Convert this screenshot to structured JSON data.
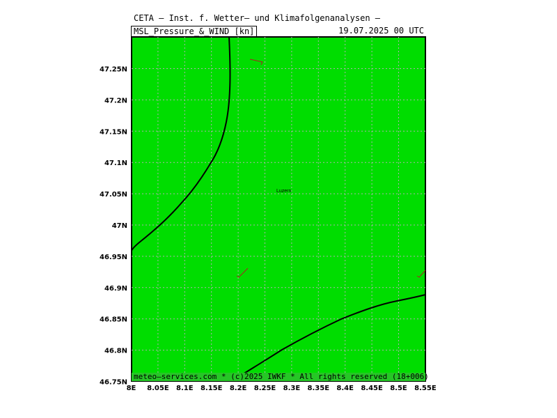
{
  "header": {
    "title": "CETA – Inst. f. Wetter– und Klimafolgenanalysen –",
    "product": "MSL_Pressure_&_WIND [kn]",
    "valid_time": "19.07.2025 00 UTC"
  },
  "footer": {
    "credit": "meteo–services.com * (c)2025 IWKF * All rights reserved (18+006)"
  },
  "map": {
    "fill_color": "#00dd00",
    "grid_color": "#b0b0b0",
    "contour_color": "#000000",
    "wind_barb_color": "#aa2222",
    "city_label": "Luzern",
    "lon_ticks": [
      "8E",
      "8.05E",
      "8.1E",
      "8.15E",
      "8.2E",
      "8.25E",
      "8.3E",
      "8.35E",
      "8.4E",
      "8.45E",
      "8.5E",
      "8.55E"
    ],
    "lat_ticks": [
      "47.25N",
      "47.2N",
      "47.15N",
      "47.1N",
      "47.05N",
      "47N",
      "46.95N",
      "46.9N",
      "46.85N",
      "46.8N",
      "46.75N"
    ]
  }
}
